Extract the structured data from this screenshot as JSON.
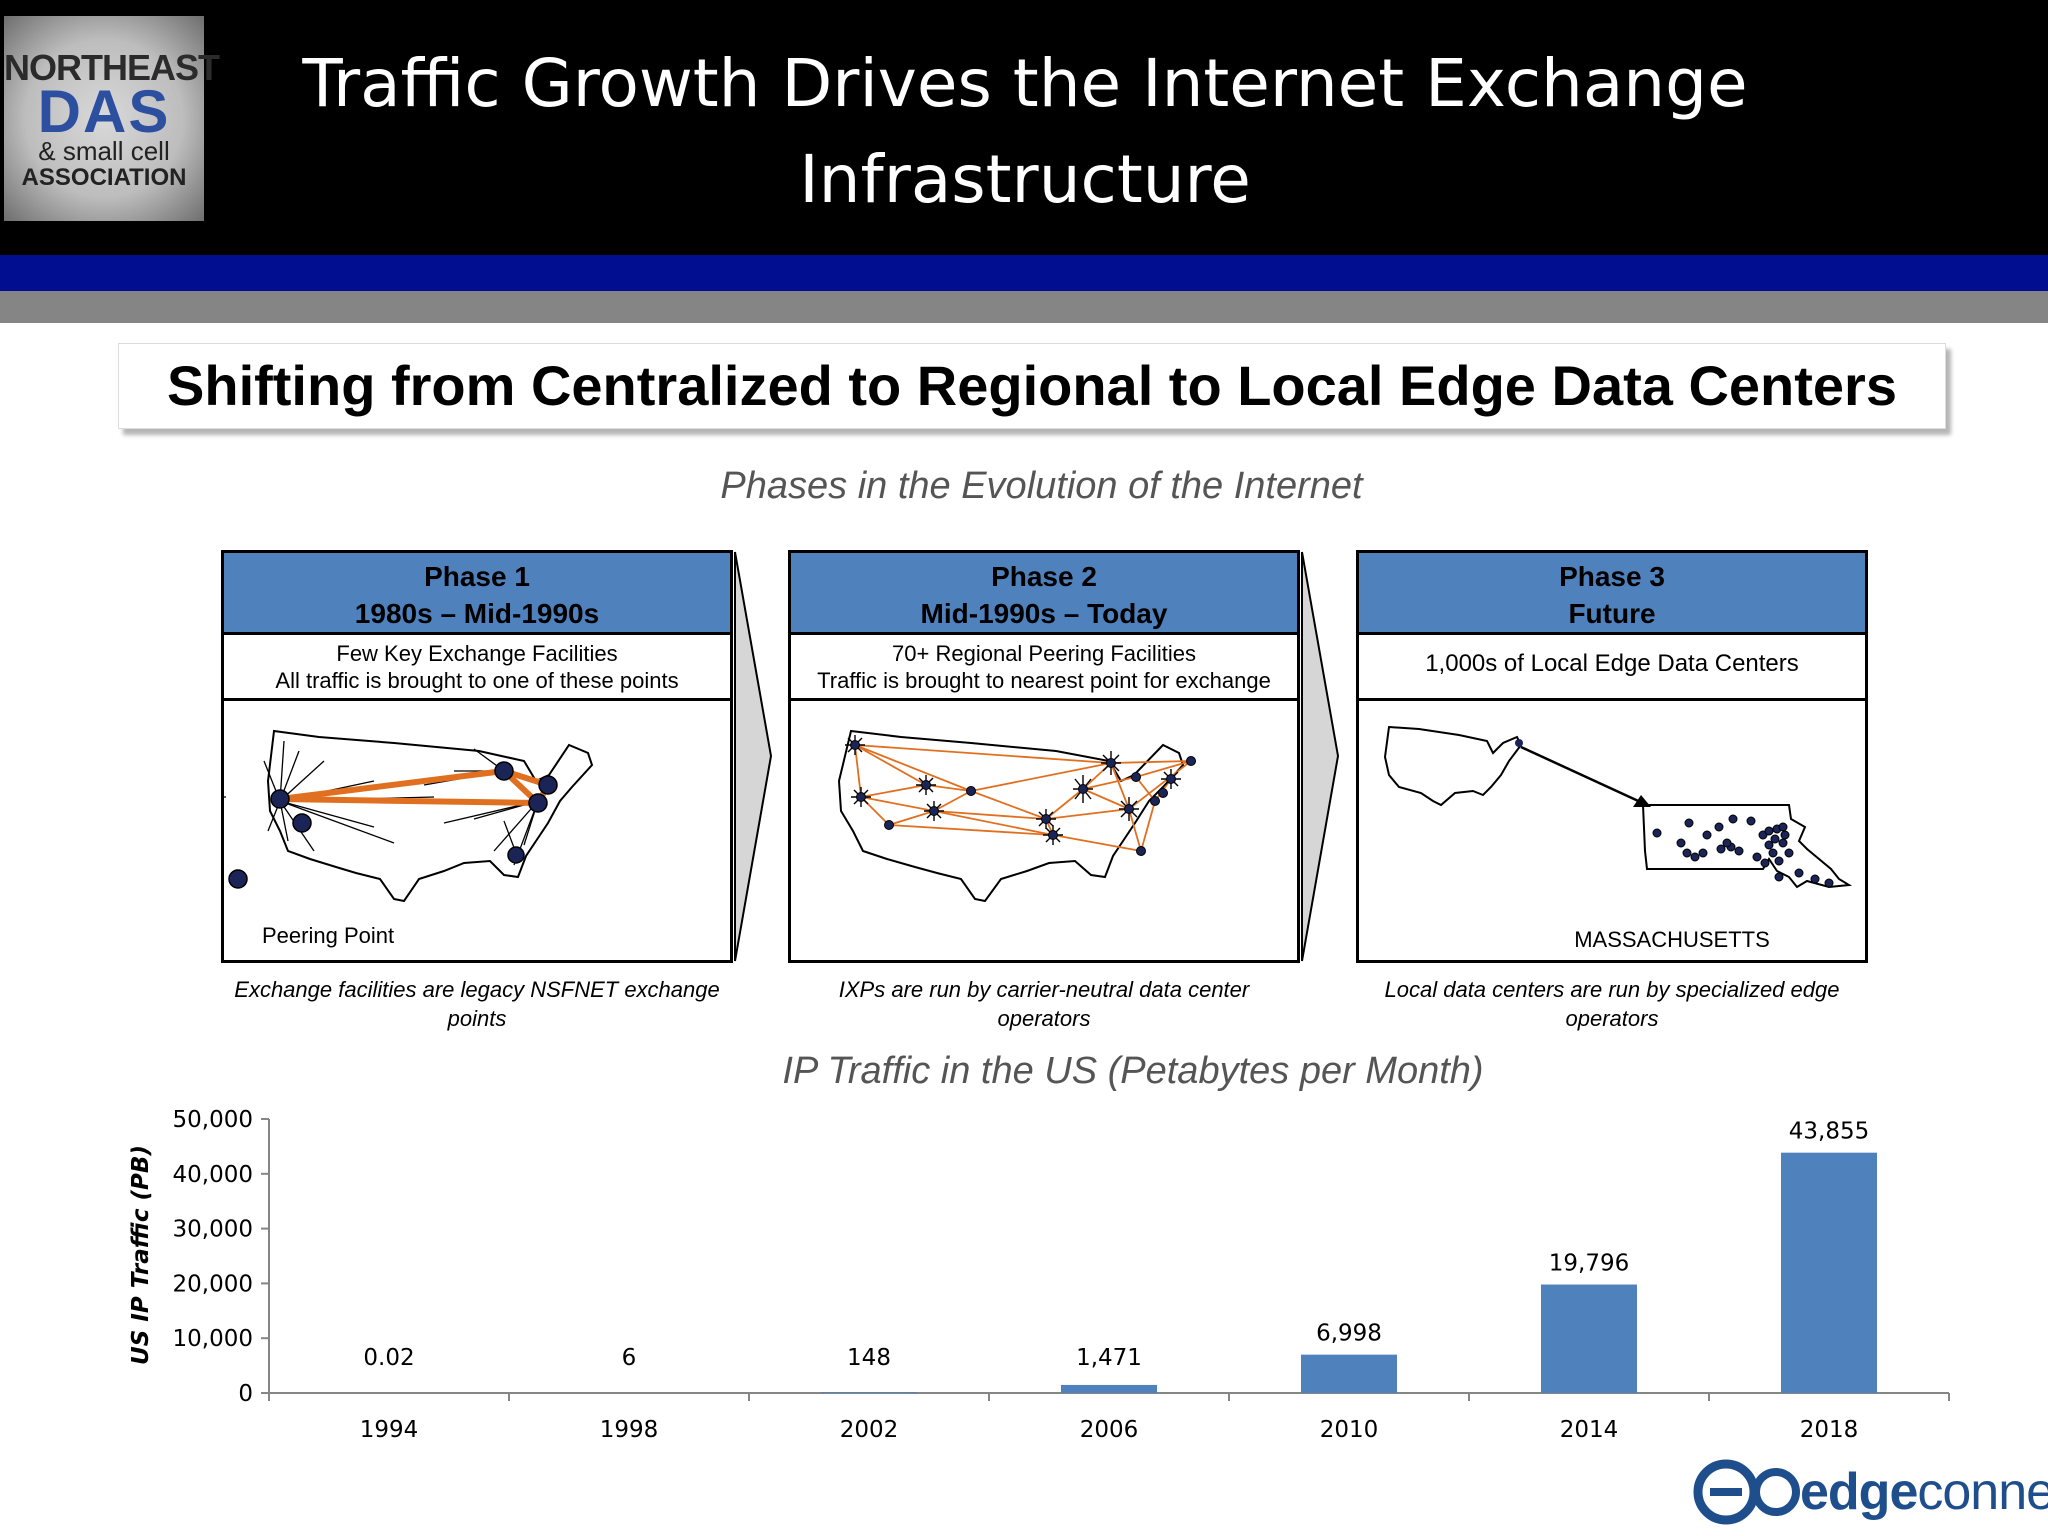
{
  "header": {
    "title_line1": "Traffic Growth Drives the Internet Exchange",
    "title_line2": "Infrastructure",
    "logo": {
      "line1": "NORTHEAST",
      "line2": "DAS",
      "line3": "& small cell",
      "line4": "ASSOCIATION"
    }
  },
  "subtitle": "Shifting from Centralized to Regional to Local Edge Data Centers",
  "phases_title": "Phases in the Evolution of the Internet",
  "phases": [
    {
      "name": "Phase 1",
      "period": "1980s – Mid-1990s",
      "desc1": "Few Key Exchange Facilities",
      "desc2": "All traffic is brought to one of these points",
      "legend": "Peering Point",
      "caption1": "Exchange facilities are legacy NSFNET exchange",
      "caption2": "points"
    },
    {
      "name": "Phase 2",
      "period": "Mid-1990s – Today",
      "desc1": "70+ Regional Peering Facilities",
      "desc2": "Traffic is brought to nearest point for exchange",
      "caption1": "IXPs are run by carrier-neutral data center",
      "caption2": "operators"
    },
    {
      "name": "Phase 3",
      "period": "Future",
      "desc1": "1,000s of Local Edge Data Centers",
      "map_label": "MASSACHUSETTS",
      "caption1": "Local data centers are run by specialized edge",
      "caption2": "operators"
    }
  ],
  "chart_title": "IP Traffic in the US (Petabytes per Month)",
  "chart_data": {
    "type": "bar",
    "title": "IP Traffic in the US (Petabytes per Month)",
    "ylabel": "US IP Traffic (PB)",
    "xlabel": "",
    "categories": [
      "1994",
      "1998",
      "2002",
      "2006",
      "2010",
      "2014",
      "2018"
    ],
    "values": [
      0.02,
      6,
      148,
      1471,
      6998,
      19796,
      43855
    ],
    "value_labels": [
      "0.02",
      "6",
      "148",
      "1,471",
      "6,998",
      "19,796",
      "43,855"
    ],
    "ylim": [
      0,
      50000
    ],
    "yticks": [
      0,
      10000,
      20000,
      30000,
      40000,
      50000
    ],
    "ytick_labels": [
      "0",
      "10,000",
      "20,000",
      "30,000",
      "40,000",
      "50,000"
    ],
    "grid": false,
    "bar_color": "#4f81bd"
  },
  "footer": {
    "brand_bold": "edge",
    "brand_light": "connex",
    "brand_color": "#1f4e8c"
  },
  "colors": {
    "phase_header": "#4f81bd",
    "link_orange": "#e07020",
    "node_navy": "#1a2456",
    "band_blue": "#000e8f",
    "band_gray": "#858585"
  }
}
